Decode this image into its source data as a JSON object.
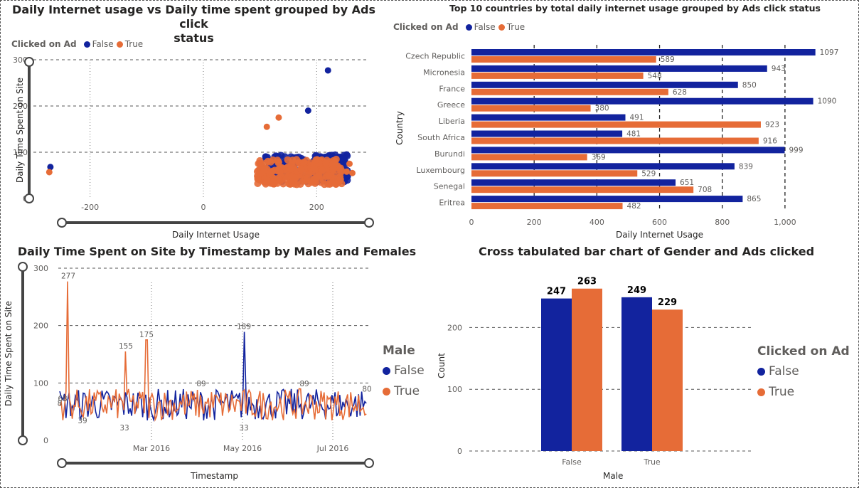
{
  "colors": {
    "false": "#12239E",
    "true": "#E66C37",
    "grid": "#555555"
  },
  "scatter_visual": {
    "title_line1": "Daily Internet usage vs Daily time spent grouped by Ads click",
    "title_line2": "status",
    "legend": {
      "title": "Clicked on Ad",
      "items": [
        "False",
        "True"
      ]
    },
    "xlabel": "Daily Internet Usage",
    "ylabel": "Daily Time Spent on Site"
  },
  "bar_visual": {
    "title": "Top 10 countries by total daily internet usage grouped by Ads click status",
    "legend": {
      "title": "Clicked on Ad",
      "items": [
        "False",
        "True"
      ]
    },
    "xlabel": "Daily Internet Usage",
    "ylabel": "Country"
  },
  "line_visual": {
    "title": "Daily Time Spent on Site by Timestamp by Males and Females",
    "legend": {
      "title": "Male",
      "items": [
        "False",
        "True"
      ]
    },
    "xlabel": "Timestamp",
    "ylabel": "Daily Time Spent on Site"
  },
  "column_visual": {
    "title": "Cross tabulated bar chart of Gender and Ads clicked",
    "legend": {
      "title": "Clicked on Ad",
      "items": [
        "False",
        "True"
      ]
    },
    "xlabel": "Male",
    "ylabel": "Count"
  },
  "chart_data": [
    {
      "type": "scatter",
      "title": "Daily Internet usage vs Daily time spent grouped by Ads click status",
      "xlabel": "Daily Internet Usage",
      "ylabel": "Daily Time Spent on Site",
      "xlim": [
        -300,
        290
      ],
      "ylim": [
        0,
        300
      ],
      "xticks": [
        -200,
        0,
        200
      ],
      "yticks": [
        0,
        100,
        200,
        300
      ],
      "grid": true,
      "legend_position": "top-left",
      "series": [
        {
          "name": "False",
          "points": [
            [
              -270,
              68
            ],
            [
              185,
              190
            ],
            [
              220,
              277
            ]
          ],
          "cluster": {
            "x": [
              110,
              255
            ],
            "y": [
              35,
              95
            ]
          }
        },
        {
          "name": "True",
          "points": [
            [
              -272,
              57
            ],
            [
              112,
              155
            ],
            [
              133,
              175
            ],
            [
              253,
              58
            ],
            [
              263,
              55
            ],
            [
              258,
              75
            ]
          ],
          "cluster": {
            "x": [
              95,
              245
            ],
            "y": [
              30,
              85
            ]
          }
        }
      ]
    },
    {
      "type": "bar",
      "orientation": "horizontal",
      "title": "Top 10 countries by total daily internet usage grouped by Ads click status",
      "xlabel": "Daily Internet Usage",
      "ylabel": "Country",
      "xlim": [
        0,
        1100
      ],
      "xticks": [
        0,
        200,
        400,
        600,
        800,
        1000
      ],
      "xtick_labels": [
        "0",
        "200",
        "400",
        "600",
        "800",
        "1,000"
      ],
      "legend_position": "top-left",
      "categories": [
        "Czech Republic",
        "Micronesia",
        "France",
        "Greece",
        "Liberia",
        "South Africa",
        "Burundi",
        "Luxembourg",
        "Senegal",
        "Eritrea"
      ],
      "series": [
        {
          "name": "False",
          "values": [
            1097,
            943,
            850,
            1090,
            491,
            481,
            999,
            839,
            651,
            865
          ]
        },
        {
          "name": "True",
          "values": [
            589,
            548,
            628,
            380,
            923,
            916,
            369,
            529,
            708,
            482
          ]
        }
      ]
    },
    {
      "type": "line",
      "title": "Daily Time Spent on Site by Timestamp by Males and Females",
      "xlabel": "Timestamp",
      "ylabel": "Daily Time Spent on Site",
      "ylim": [
        0,
        300
      ],
      "yticks": [
        0,
        100,
        200,
        300
      ],
      "xtick_labels": [
        "Mar 2016",
        "May 2016",
        "Jul 2016"
      ],
      "legend_position": "right",
      "series": [
        {
          "name": "False",
          "spikes": [
            {
              "label": "189",
              "value": 189
            }
          ],
          "range": [
            33,
            90
          ]
        },
        {
          "name": "True",
          "spikes": [
            {
              "label": "277",
              "value": 277
            },
            {
              "label": "155",
              "value": 155
            },
            {
              "label": "175",
              "value": 175
            }
          ],
          "range": [
            33,
            90
          ]
        }
      ],
      "data_labels": [
        "277",
        "155",
        "175",
        "189",
        "89",
        "89",
        "80",
        "68",
        "39",
        "33",
        "33",
        "8"
      ]
    },
    {
      "type": "bar",
      "title": "Cross tabulated bar chart of Gender and Ads clicked",
      "xlabel": "Male",
      "ylabel": "Count",
      "ylim": [
        0,
        280
      ],
      "yticks": [
        0,
        100,
        200
      ],
      "legend_position": "right",
      "categories": [
        "False",
        "True"
      ],
      "series": [
        {
          "name": "False",
          "values": [
            247,
            249
          ]
        },
        {
          "name": "True",
          "values": [
            263,
            229
          ]
        }
      ]
    }
  ]
}
